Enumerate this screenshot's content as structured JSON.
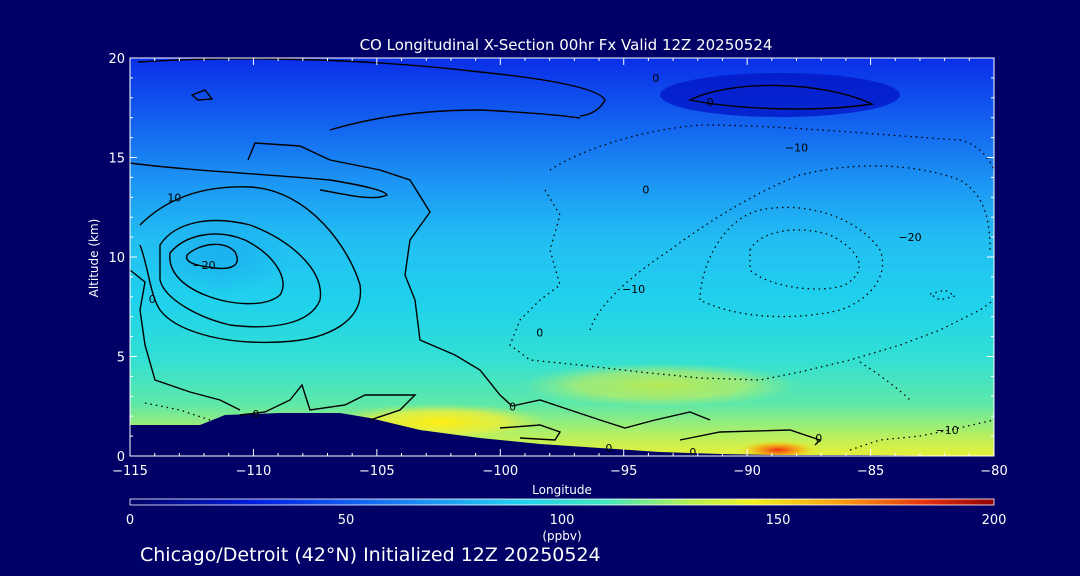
{
  "chart_data": {
    "type": "heatmap",
    "title": "CO Longitudinal X-Section 00hr  Fx Valid 12Z 20250524",
    "xlabel": "Longitude",
    "ylabel": "Altitude (km)",
    "xlim": [
      -115,
      -80
    ],
    "ylim": [
      0,
      20
    ],
    "x_ticks": [
      -115,
      -110,
      -105,
      -100,
      -95,
      -90,
      -85,
      -80
    ],
    "x_tick_labels": [
      "−115",
      "−110",
      "−105",
      "−100",
      "−95",
      "−90",
      "−85",
      "−80"
    ],
    "y_ticks": [
      0,
      5,
      10,
      15,
      20
    ],
    "y_tick_labels": [
      "0",
      "5",
      "10",
      "15",
      "20"
    ],
    "colorbar": {
      "min": 0,
      "max": 200,
      "ticks": [
        0,
        50,
        100,
        150,
        200
      ],
      "tick_labels": [
        "0",
        "50",
        "100",
        "150",
        "200"
      ],
      "unit": "(ppbv)"
    },
    "contour_labels": [
      {
        "lon": -113.2,
        "alt": 13.0,
        "text": "10"
      },
      {
        "lon": -112.0,
        "alt": 9.6,
        "text": "−20"
      },
      {
        "lon": -114.1,
        "alt": 7.9,
        "text": "0"
      },
      {
        "lon": -109.9,
        "alt": 2.1,
        "text": "0"
      },
      {
        "lon": -94.1,
        "alt": 13.4,
        "text": "0"
      },
      {
        "lon": -98.4,
        "alt": 6.2,
        "text": "0"
      },
      {
        "lon": -99.5,
        "alt": 2.5,
        "text": "0"
      },
      {
        "lon": -95.6,
        "alt": 0.4,
        "text": "0"
      },
      {
        "lon": -92.2,
        "alt": 0.2,
        "text": "0"
      },
      {
        "lon": -87.1,
        "alt": 0.9,
        "text": "0"
      },
      {
        "lon": -88.0,
        "alt": 15.5,
        "text": "−10"
      },
      {
        "lon": -94.6,
        "alt": 8.4,
        "text": "−10"
      },
      {
        "lon": -83.4,
        "alt": 11.0,
        "text": "−20"
      },
      {
        "lon": -81.9,
        "alt": 1.3,
        "text": "−10"
      },
      {
        "lon": -93.7,
        "alt": 19.0,
        "text": "0"
      },
      {
        "lon": -91.5,
        "alt": 17.8,
        "text": "0"
      }
    ],
    "footer": "Chicago/Detroit (42°N) Initialized 12Z 20250524"
  }
}
